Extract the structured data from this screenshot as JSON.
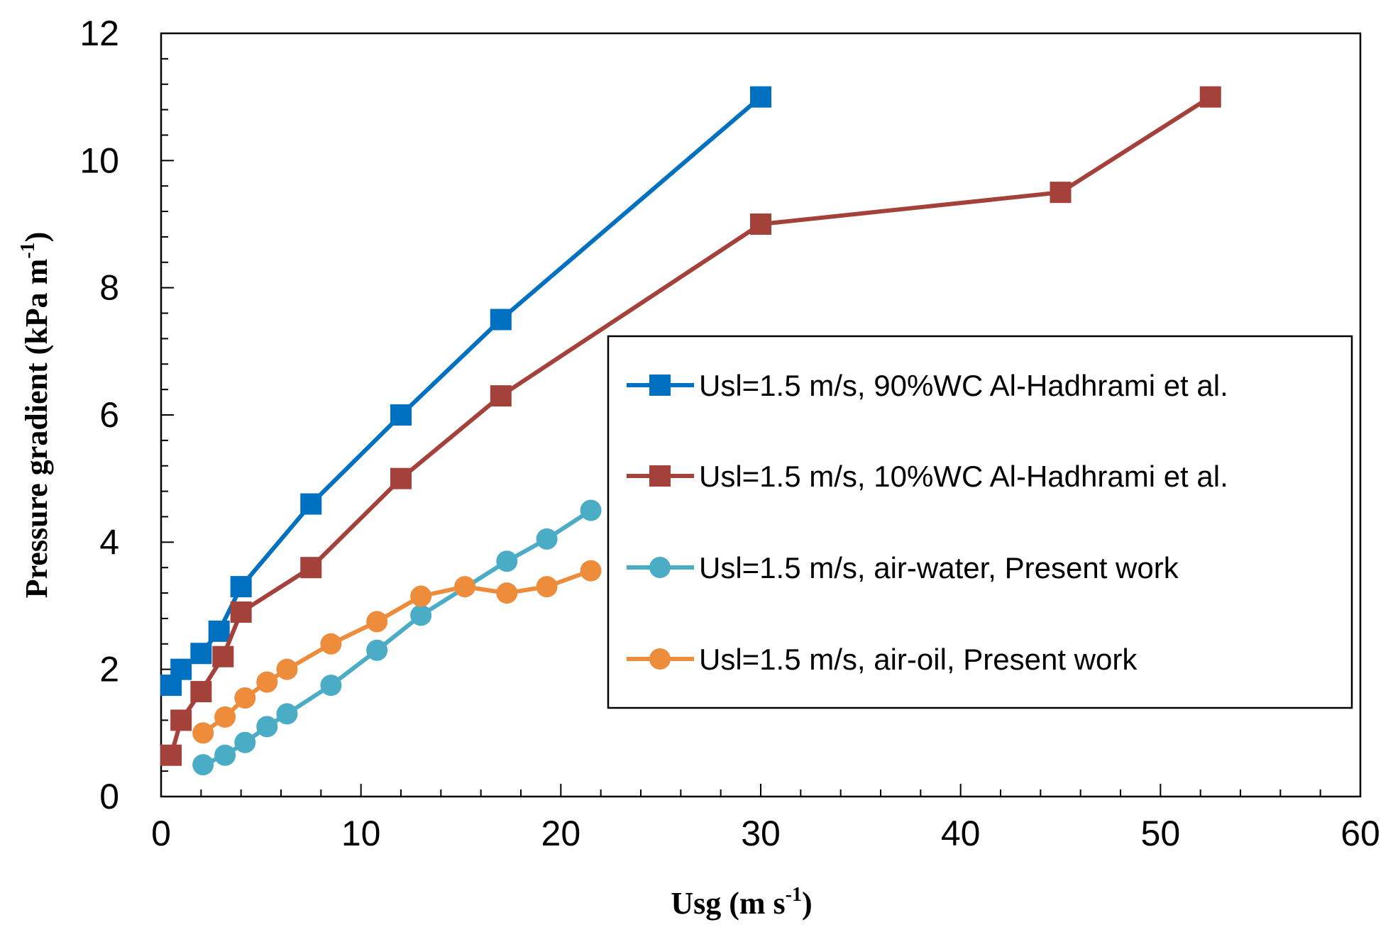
{
  "chart_data": {
    "type": "line",
    "title": "",
    "xlabel": {
      "main": "Usg (m s",
      "sup": "-1",
      "end": ")"
    },
    "ylabel": {
      "main": "Pressure gradient (kPa m",
      "sup": "-1",
      "end": ")"
    },
    "xlim": [
      0,
      60
    ],
    "ylim": [
      0,
      12
    ],
    "xticks": [
      "0",
      "10",
      "20",
      "30",
      "40",
      "50",
      "60"
    ],
    "yticks": [
      "0",
      "2",
      "4",
      "6",
      "8",
      "10",
      "12"
    ],
    "grid": false,
    "legend_position": "center-right",
    "series": [
      {
        "name": "Usl=1.5 m/s, 90%WC Al-Hadhrami et al.",
        "color": "#0070C0",
        "marker": "square",
        "x": [
          0.5,
          1.0,
          2.0,
          2.9,
          4.0,
          7.5,
          12.0,
          17.0,
          30.0
        ],
        "y": [
          1.75,
          2.0,
          2.25,
          2.6,
          3.3,
          4.6,
          6.0,
          7.5,
          11.0
        ]
      },
      {
        "name": "Usl=1.5 m/s, 10%WC Al-Hadhrami et al.",
        "color": "#A5413B",
        "marker": "square",
        "x": [
          0.5,
          1.0,
          2.0,
          3.1,
          4.0,
          7.5,
          12.0,
          17.0,
          30.0,
          45.0,
          52.5
        ],
        "y": [
          0.65,
          1.2,
          1.65,
          2.2,
          2.9,
          3.6,
          5.0,
          6.3,
          9.0,
          9.5,
          11.0
        ]
      },
      {
        "name": "Usl=1.5 m/s, air-water, Present work",
        "color": "#4BACC6",
        "marker": "circle",
        "x": [
          2.1,
          3.2,
          4.2,
          5.3,
          6.3,
          8.5,
          10.8,
          13.0,
          17.3,
          19.3,
          21.5
        ],
        "y": [
          0.5,
          0.65,
          0.85,
          1.1,
          1.3,
          1.75,
          2.3,
          2.85,
          3.7,
          4.05,
          4.5
        ]
      },
      {
        "name": "Usl=1.5 m/s, air-oil, Present work",
        "color": "#ED8D3C",
        "marker": "circle",
        "x": [
          2.1,
          3.2,
          4.2,
          5.3,
          6.3,
          8.5,
          10.8,
          13.0,
          15.2,
          17.3,
          19.3,
          21.5
        ],
        "y": [
          1.0,
          1.25,
          1.55,
          1.8,
          2.0,
          2.4,
          2.75,
          3.15,
          3.3,
          3.2,
          3.3,
          3.55
        ]
      }
    ]
  }
}
